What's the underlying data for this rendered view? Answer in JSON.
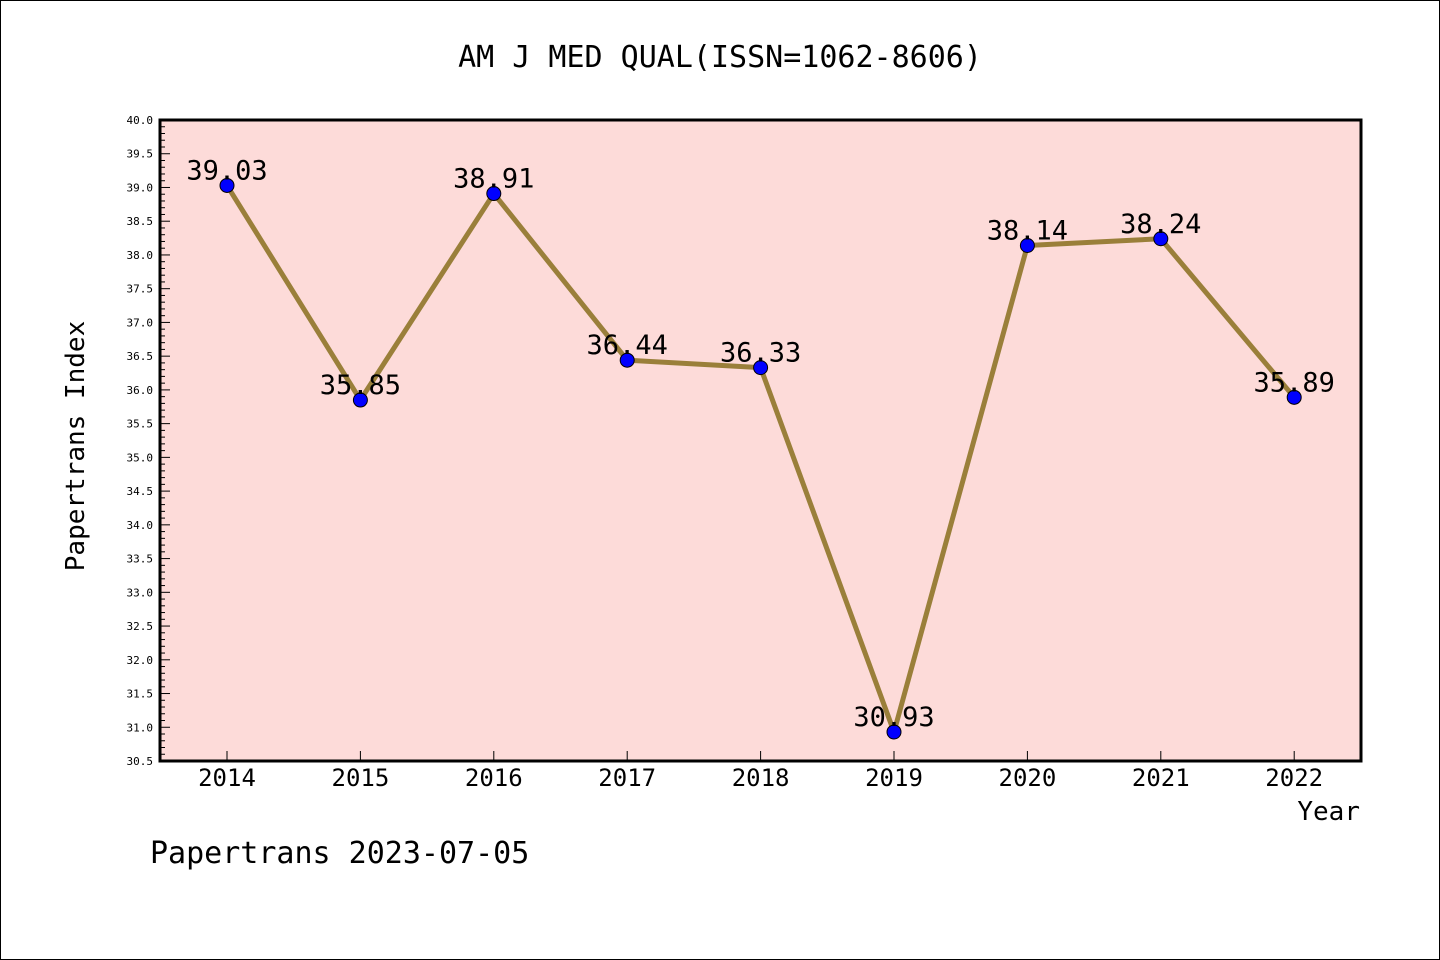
{
  "chart_data": {
    "type": "line",
    "title": "AM J MED QUAL(ISSN=1062-8606)",
    "xlabel": "Year",
    "ylabel": "Papertrans Index",
    "categories": [
      "2014",
      "2015",
      "2016",
      "2017",
      "2018",
      "2019",
      "2020",
      "2021",
      "2022"
    ],
    "values": [
      39.03,
      35.85,
      38.91,
      36.44,
      36.33,
      30.93,
      38.14,
      38.24,
      35.89
    ],
    "data_labels": [
      "39.03",
      "35.85",
      "38.91",
      "36.44",
      "36.33",
      "30.93",
      "38.14",
      "38.24",
      "35.89"
    ],
    "ylim": [
      30.5,
      40.0
    ],
    "yticks": [
      "30.5",
      "31.0",
      "31.5",
      "32.0",
      "32.5",
      "33.0",
      "33.5",
      "34.0",
      "34.5",
      "35.0",
      "35.5",
      "36.0",
      "36.5",
      "37.0",
      "37.5",
      "38.0",
      "38.5",
      "39.0",
      "39.5",
      "40.0"
    ],
    "grid": false,
    "legend": "none",
    "colors": {
      "plot_background": "#fddbd9",
      "line": "#9a7f3a",
      "marker": "#0000ff"
    }
  },
  "footer": "Papertrans 2023-07-05"
}
